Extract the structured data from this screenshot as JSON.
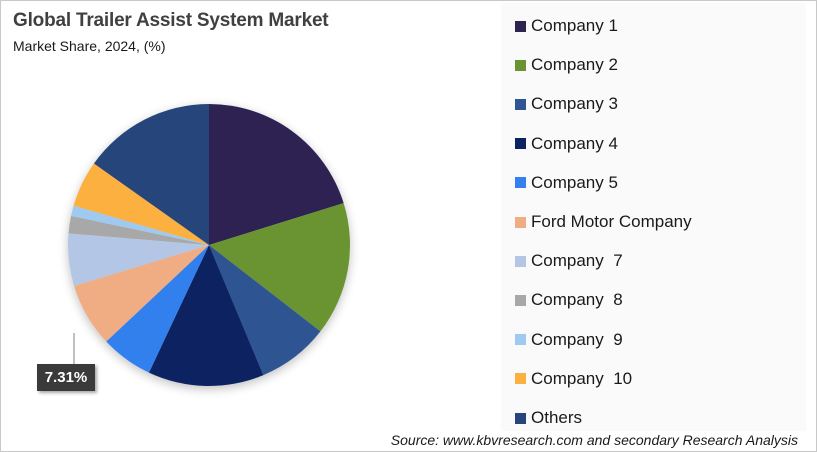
{
  "header": {
    "title": "Global Trailer Assist System Market",
    "subtitle": "Market Share, 2024, (%)"
  },
  "legend": {
    "items": [
      {
        "label": "Company 1",
        "color": "#2e2452"
      },
      {
        "label": "Company 2",
        "color": "#6a9432"
      },
      {
        "label": "Company 3",
        "color": "#2f5592"
      },
      {
        "label": "Company 4",
        "color": "#0c2260"
      },
      {
        "label": "Company 5",
        "color": "#3380ee"
      },
      {
        "label": "Ford Motor Company",
        "color": "#f0ad84"
      },
      {
        "label": "Company  7",
        "color": "#b4c6e6"
      },
      {
        "label": "Company  8",
        "color": "#a8a8a8"
      },
      {
        "label": "Company  9",
        "color": "#9fcaf0"
      },
      {
        "label": "Company  10",
        "color": "#fbb040"
      },
      {
        "label": "Others",
        "color": "#27457a"
      }
    ]
  },
  "data_label": {
    "text": "7.31%",
    "target": "Ford Motor Company"
  },
  "source": "Source: www.kbvresearch.com and secondary Research Analysis",
  "chart_data": {
    "type": "pie",
    "title": "Global Trailer Assist System Market",
    "subtitle": "Market Share, 2024, (%)",
    "categories": [
      "Company 1",
      "Company 2",
      "Company 3",
      "Company 4",
      "Company 5",
      "Ford Motor Company",
      "Company  7",
      "Company  8",
      "Company  9",
      "Company  10",
      "Others"
    ],
    "values": [
      20.2,
      15.3,
      8.2,
      13.3,
      6.0,
      7.31,
      6.0,
      2.0,
      1.2,
      5.3,
      15.19
    ],
    "colors": [
      "#2e2452",
      "#6a9432",
      "#2f5592",
      "#0c2260",
      "#3380ee",
      "#f0ad84",
      "#b4c6e6",
      "#a8a8a8",
      "#9fcaf0",
      "#fbb040",
      "#27457a"
    ],
    "start_angle_deg": 0,
    "direction": "clockwise",
    "data_labels": [
      {
        "category": "Ford Motor Company",
        "text": "7.31%"
      }
    ],
    "legend_position": "right",
    "center": [
      208,
      244
    ],
    "radius": 141
  }
}
